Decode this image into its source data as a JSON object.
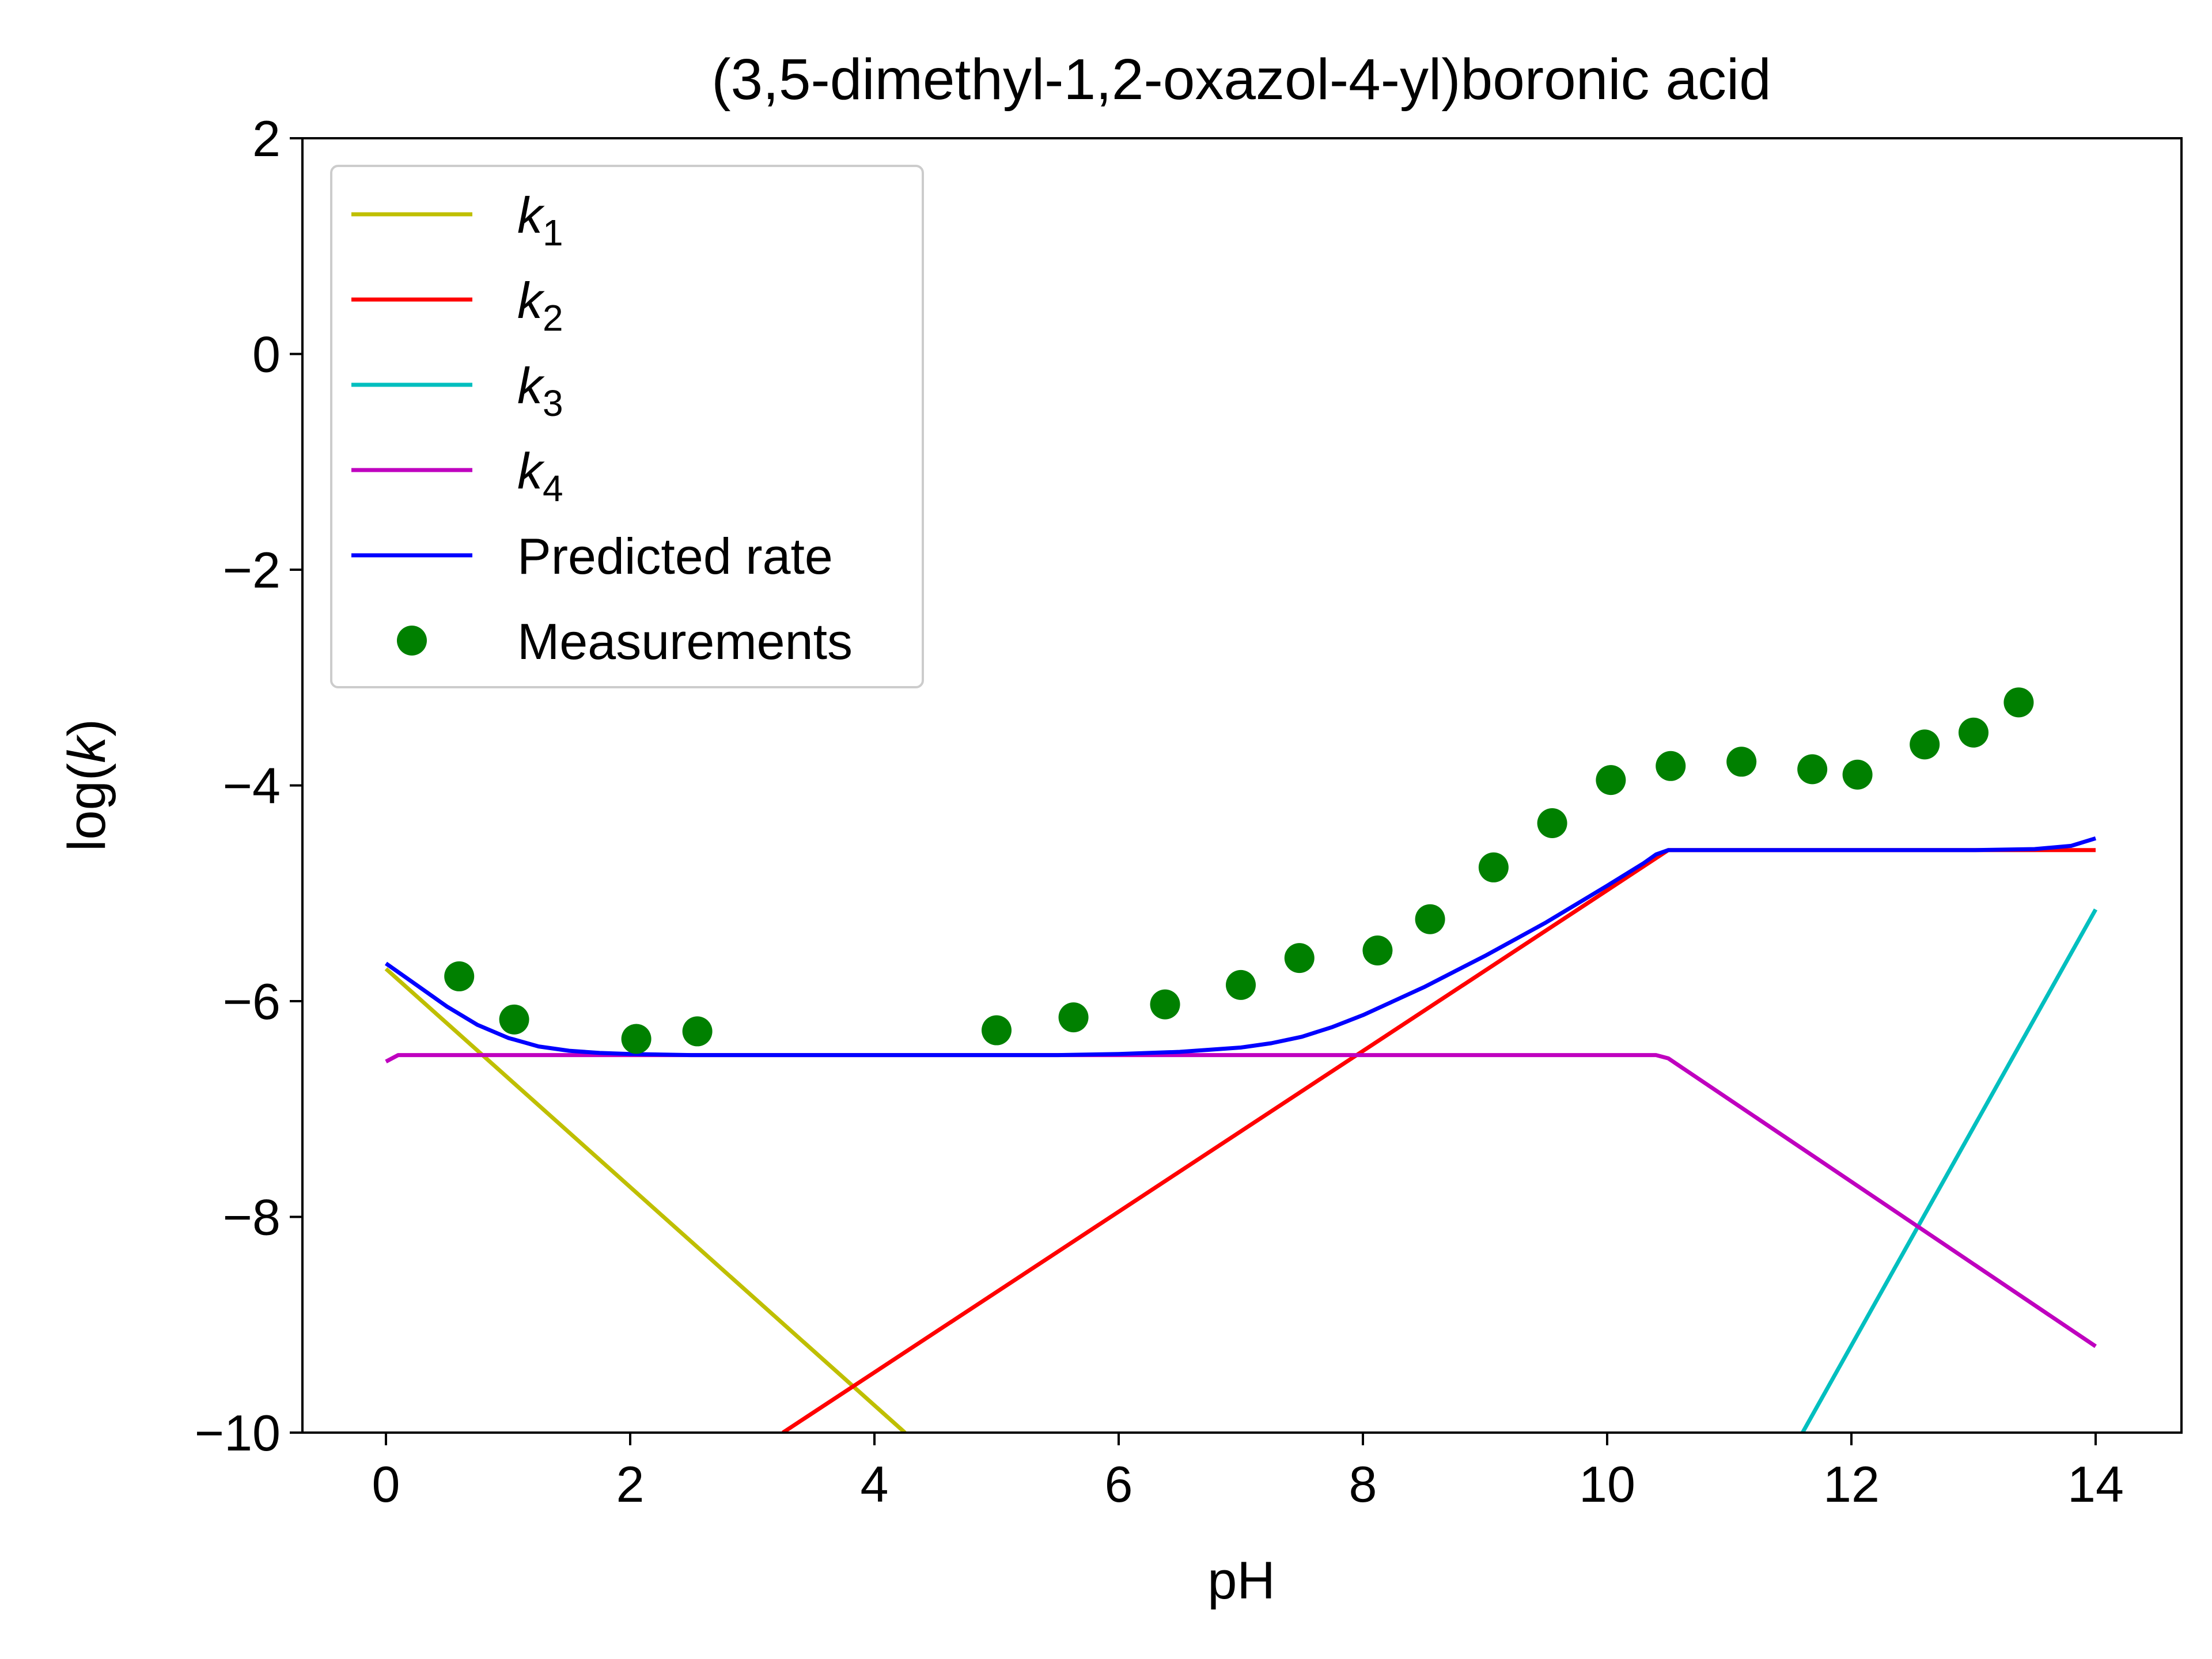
{
  "chart_data": {
    "type": "line",
    "title": "(3,5-dimethyl-1,2-oxazol-4-yl)boronic acid",
    "xlabel": "pH",
    "ylabel": "log(k)",
    "xlim": [
      -0.7,
      14.7
    ],
    "ylim": [
      -10,
      2
    ],
    "xticks": [
      0,
      2,
      4,
      6,
      8,
      10,
      12,
      14
    ],
    "yticks": [
      2,
      0,
      -2,
      -4,
      -6,
      -8,
      -10
    ],
    "xtick_labels": [
      "0",
      "2",
      "4",
      "6",
      "8",
      "10",
      "12",
      "14"
    ],
    "ytick_labels": [
      "2",
      "0",
      "−2",
      "−4",
      "−6",
      "−8",
      "−10"
    ],
    "grid": false,
    "legend_position": "top-left",
    "series": [
      {
        "name": "k1",
        "label_base": "k",
        "label_sub": "1",
        "color": "#bfbf00",
        "style": "line",
        "x": [
          0,
          4.25
        ],
        "y": [
          -5.7,
          -10.0
        ]
      },
      {
        "name": "k2",
        "label_base": "k",
        "label_sub": "2",
        "color": "#ff0000",
        "style": "line",
        "x": [
          3.25,
          10.5,
          14.0
        ],
        "y": [
          -10.0,
          -4.6,
          -4.6
        ]
      },
      {
        "name": "k3",
        "label_base": "k",
        "label_sub": "3",
        "color": "#00bfbf",
        "style": "line",
        "x": [
          11.6,
          14.0
        ],
        "y": [
          -10.0,
          -5.15
        ]
      },
      {
        "name": "k4",
        "label_base": "k",
        "label_sub": "4",
        "color": "#bf00bf",
        "style": "line",
        "x": [
          0,
          0.1,
          10.4,
          10.5,
          14.0
        ],
        "y": [
          -6.56,
          -6.5,
          -6.5,
          -6.53,
          -9.2
        ]
      },
      {
        "name": "Predicted rate",
        "label_base": "Predicted rate",
        "label_sub": "",
        "color": "#0000ff",
        "style": "line",
        "x": [
          0,
          0.25,
          0.5,
          0.75,
          1.0,
          1.25,
          1.5,
          1.75,
          2.0,
          2.5,
          3.0,
          4.0,
          5.0,
          5.5,
          6.0,
          6.5,
          7.0,
          7.25,
          7.5,
          7.75,
          8.0,
          8.25,
          8.5,
          9.0,
          9.5,
          10.0,
          10.3,
          10.4,
          10.5,
          11.0,
          12.0,
          13.0,
          13.5,
          13.8,
          14.0
        ],
        "y": [
          -5.65,
          -5.85,
          -6.05,
          -6.22,
          -6.34,
          -6.42,
          -6.46,
          -6.48,
          -6.49,
          -6.5,
          -6.5,
          -6.5,
          -6.5,
          -6.5,
          -6.49,
          -6.47,
          -6.43,
          -6.39,
          -6.33,
          -6.24,
          -6.13,
          -6.0,
          -5.87,
          -5.58,
          -5.27,
          -4.93,
          -4.72,
          -4.64,
          -4.6,
          -4.6,
          -4.6,
          -4.6,
          -4.59,
          -4.56,
          -4.49
        ]
      },
      {
        "name": "Measurements",
        "label_base": "Measurements",
        "label_sub": "",
        "color": "#008000",
        "style": "markers",
        "x": [
          0.6,
          1.05,
          2.05,
          2.55,
          5.0,
          5.63,
          6.38,
          7.0,
          7.48,
          8.12,
          8.55,
          9.07,
          9.55,
          10.03,
          10.52,
          11.1,
          11.68,
          12.05,
          12.6,
          13.0,
          13.37
        ],
        "y": [
          -5.77,
          -6.17,
          -6.35,
          -6.28,
          -6.27,
          -6.15,
          -6.03,
          -5.85,
          -5.6,
          -5.53,
          -5.24,
          -4.76,
          -4.35,
          -3.95,
          -3.82,
          -3.78,
          -3.85,
          -3.9,
          -3.62,
          -3.51,
          -3.23
        ]
      }
    ]
  }
}
